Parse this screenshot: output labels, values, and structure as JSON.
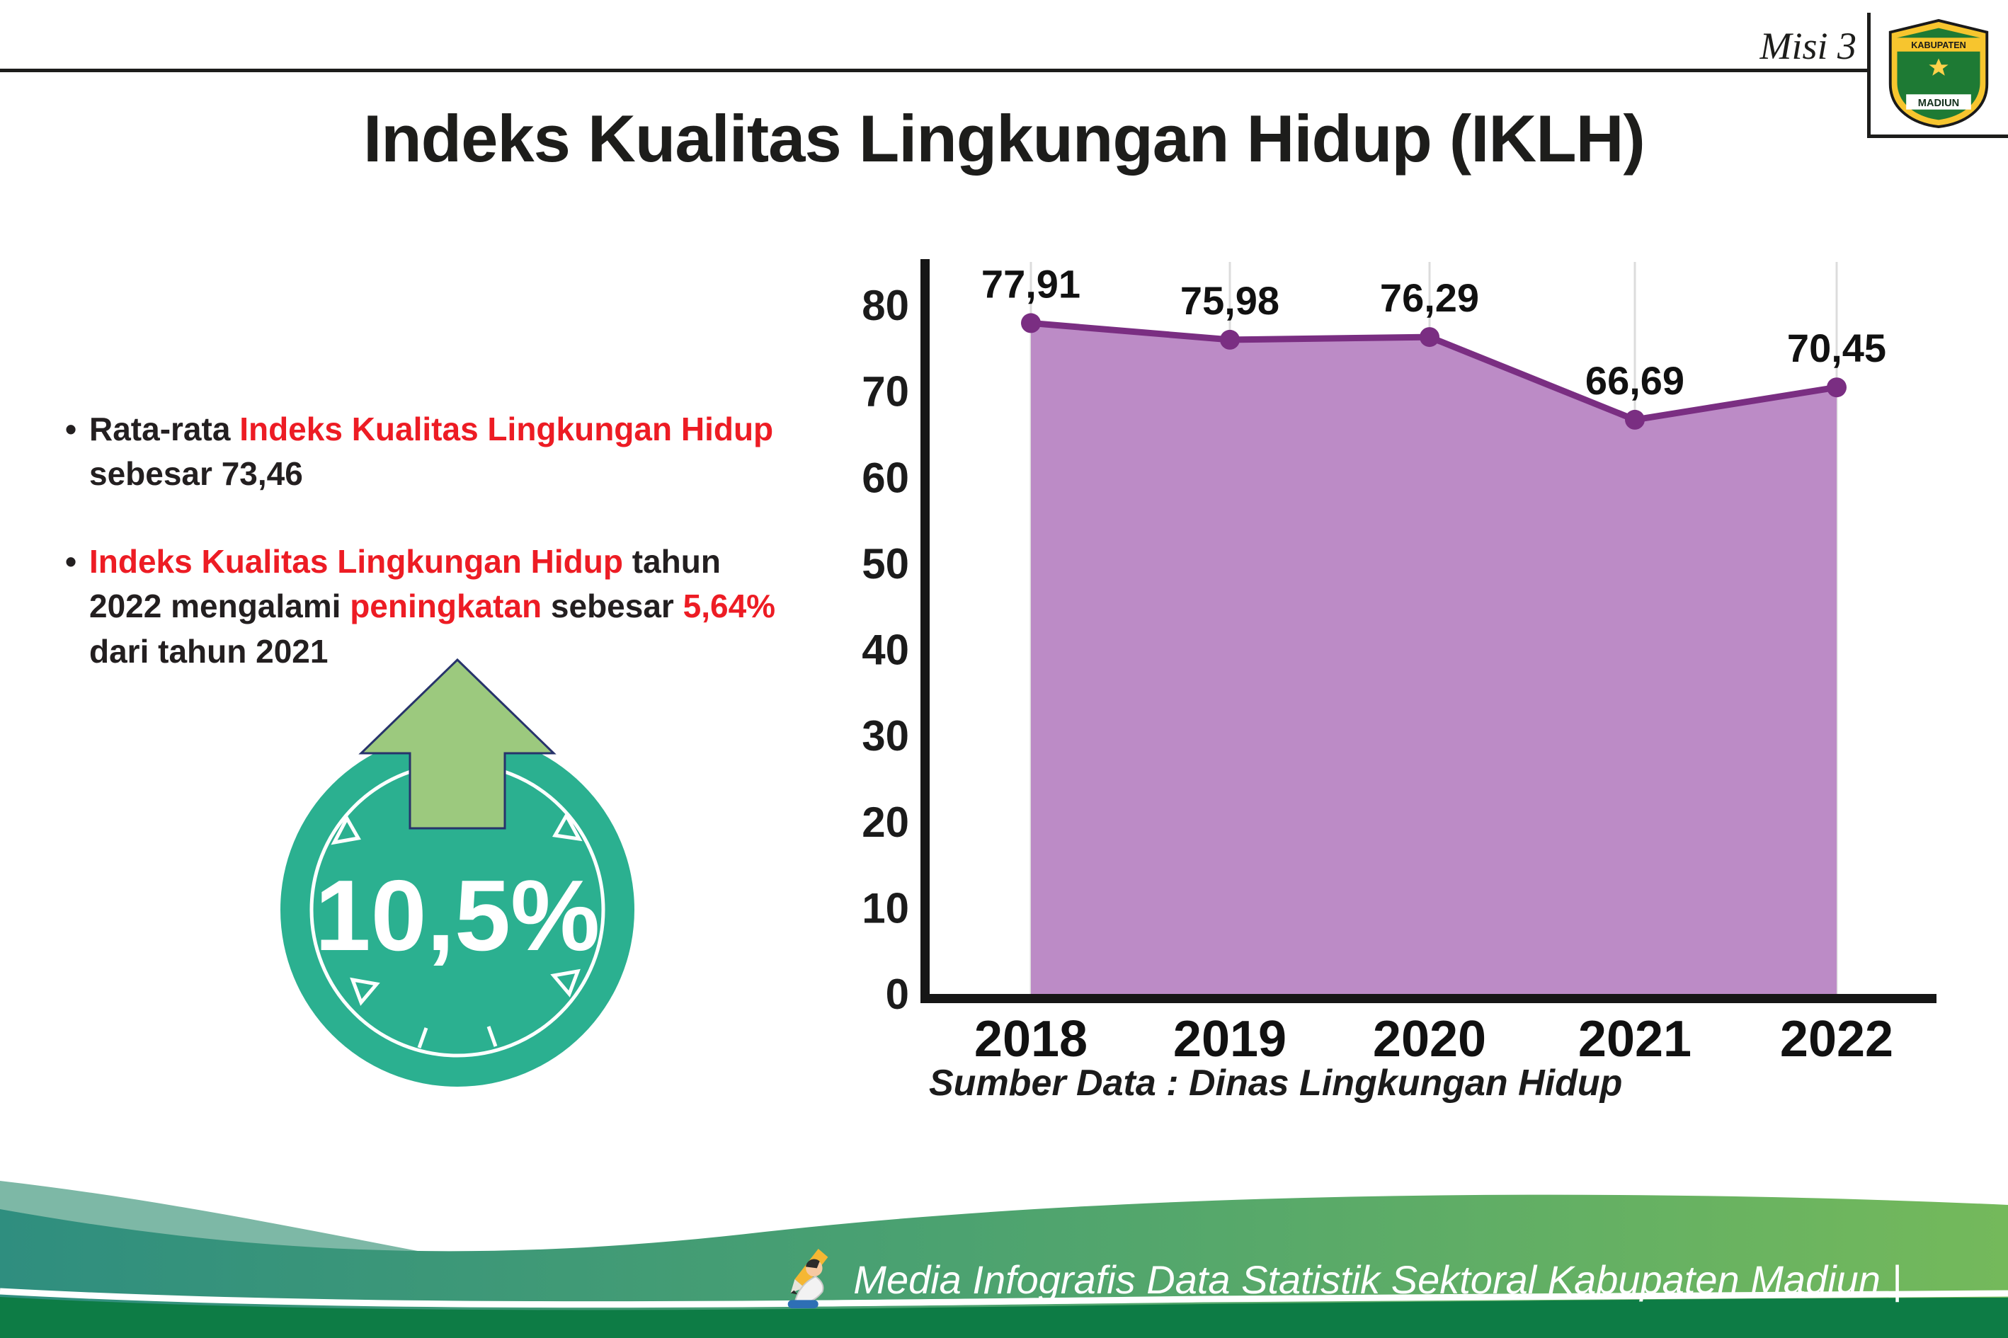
{
  "header": {
    "misi_label": "Misi 3",
    "title": "Indeks Kualitas Lingkungan Hidup (IKLH)"
  },
  "logo": {
    "top_text": "KABUPATEN",
    "bottom_text": "MADIUN"
  },
  "bullets": [
    {
      "segments": [
        {
          "text": "Rata-rata ",
          "red": false
        },
        {
          "text": "Indeks Kualitas Lingkungan Hidup",
          "red": true
        },
        {
          "text": " sebesar 73,46",
          "red": false
        }
      ]
    },
    {
      "segments": [
        {
          "text": "Indeks Kualitas Lingkungan Hidup",
          "red": true
        },
        {
          "text": " tahun 2022 mengalami ",
          "red": false
        },
        {
          "text": "peningkatan",
          "red": true
        },
        {
          "text": " sebesar ",
          "red": false
        },
        {
          "text": "5,64%",
          "red": true
        },
        {
          "text": " dari tahun 2021",
          "red": false
        }
      ]
    }
  ],
  "badge": {
    "value": "10,5%",
    "circle_color": "#2bb090",
    "arrow_color": "#9cc97e"
  },
  "chart_data": {
    "type": "area",
    "title": "",
    "xlabel": "",
    "ylabel": "",
    "categories": [
      "2018",
      "2019",
      "2020",
      "2021",
      "2022"
    ],
    "values": [
      77.91,
      75.98,
      76.29,
      66.69,
      70.45
    ],
    "point_labels": [
      "77,91",
      "75,98",
      "76,29",
      "66,69",
      "70,45"
    ],
    "ylim": [
      0,
      80
    ],
    "yticks": [
      0,
      10,
      20,
      30,
      40,
      50,
      60,
      70,
      80
    ],
    "grid": "vertical-light",
    "legend": "none",
    "colors": {
      "area_fill": "#bc8bc6",
      "line": "#7a2e82",
      "marker": "#7a2e82"
    }
  },
  "source_note": "Sumber Data : Dinas Lingkungan Hidup",
  "footer": {
    "text": "Media Infografis Data Statistik Sektoral Kabupaten Madiun |"
  }
}
